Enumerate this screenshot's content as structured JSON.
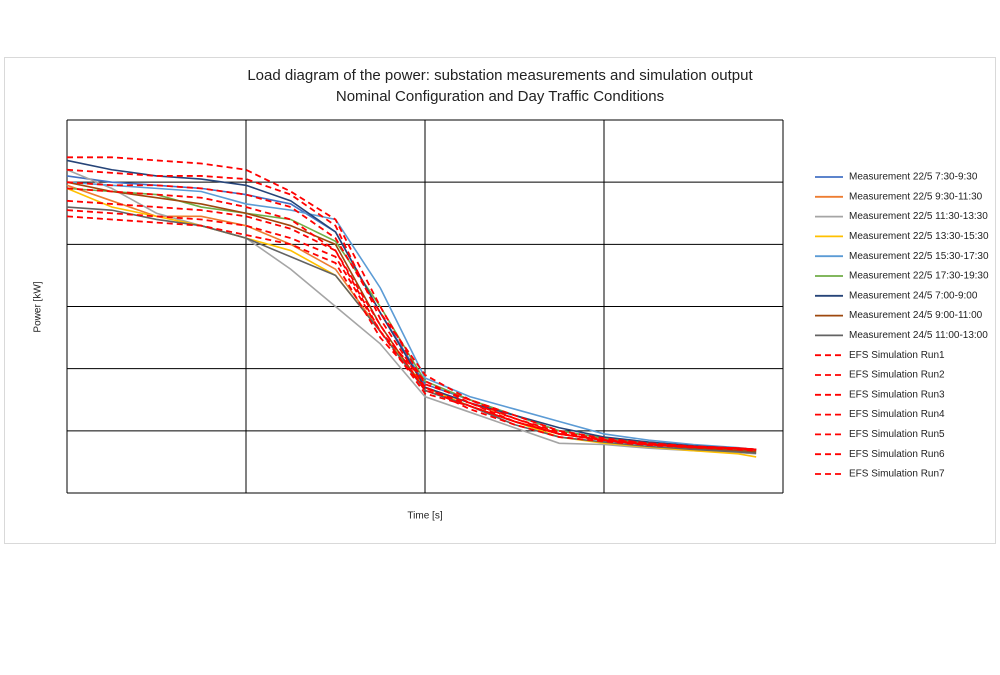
{
  "chart_data": {
    "type": "line",
    "title": "Load diagram of the power: substation measurements and simulation output",
    "subtitle": "Nominal Configuration and Day Traffic Conditions",
    "x_label": "Time [s]",
    "y_label": "Power [kW]",
    "x": [
      0,
      0.25,
      0.5,
      0.75,
      1,
      1.25,
      1.5,
      1.75,
      2,
      2.25,
      2.5,
      2.75,
      3,
      3.25,
      3.5,
      3.75,
      3.85
    ],
    "xlim": [
      0,
      4
    ],
    "ylim": [
      0,
      6
    ],
    "xticks": [
      0,
      1,
      2,
      3,
      4
    ],
    "yticks": [
      0,
      1,
      2,
      3,
      4,
      5,
      6
    ],
    "grid": true,
    "legend": "right",
    "series": [
      {
        "name": "Measurement 22/5 7:30-9:30",
        "color": "#4472c4",
        "values": [
          5.1,
          5.0,
          4.95,
          4.9,
          4.8,
          4.65,
          4.2,
          2.9,
          1.75,
          1.5,
          1.25,
          1.0,
          0.88,
          0.8,
          0.74,
          0.7,
          0.68
        ]
      },
      {
        "name": "Measurement 22/5 9:30-11:30",
        "color": "#ed7d31",
        "values": [
          4.95,
          4.7,
          4.45,
          4.45,
          4.3,
          4.0,
          3.6,
          2.6,
          1.7,
          1.45,
          1.2,
          0.95,
          0.85,
          0.78,
          0.72,
          0.68,
          0.66
        ]
      },
      {
        "name": "Measurement 22/5 11:30-13:30",
        "color": "#a5a5a5",
        "values": [
          5.2,
          4.9,
          4.5,
          4.3,
          4.1,
          3.6,
          3.0,
          2.4,
          1.55,
          1.3,
          1.05,
          0.8,
          0.78,
          0.72,
          0.68,
          0.65,
          0.63
        ]
      },
      {
        "name": "Measurement 22/5 13:30-15:30",
        "color": "#ffc000",
        "values": [
          4.9,
          4.6,
          4.45,
          4.3,
          4.1,
          3.9,
          3.5,
          2.6,
          1.7,
          1.4,
          1.15,
          0.9,
          0.8,
          0.74,
          0.68,
          0.63,
          0.58
        ]
      },
      {
        "name": "Measurement 22/5 15:30-17:30",
        "color": "#5b9bd5",
        "values": [
          5.0,
          4.95,
          4.9,
          4.85,
          4.65,
          4.55,
          4.4,
          3.3,
          1.85,
          1.55,
          1.35,
          1.15,
          0.95,
          0.85,
          0.78,
          0.73,
          0.7
        ]
      },
      {
        "name": "Measurement 22/5 17:30-19:30",
        "color": "#70ad47",
        "values": [
          4.9,
          4.85,
          4.8,
          4.6,
          4.5,
          4.4,
          4.05,
          3.0,
          1.8,
          1.5,
          1.25,
          1.0,
          0.88,
          0.8,
          0.74,
          0.7,
          0.68
        ]
      },
      {
        "name": "Measurement 24/5 7:00-9:00",
        "color": "#264478",
        "values": [
          5.35,
          5.2,
          5.1,
          5.05,
          4.95,
          4.7,
          4.2,
          2.9,
          1.7,
          1.45,
          1.25,
          1.05,
          0.9,
          0.82,
          0.76,
          0.72,
          0.7
        ]
      },
      {
        "name": "Measurement 24/5 9:00-11:00",
        "color": "#9e480e",
        "values": [
          5.0,
          4.85,
          4.75,
          4.65,
          4.5,
          4.3,
          4.0,
          2.7,
          1.65,
          1.4,
          1.15,
          0.95,
          0.85,
          0.78,
          0.72,
          0.68,
          0.66
        ]
      },
      {
        "name": "Measurement 24/5 11:00-13:00",
        "color": "#636363",
        "values": [
          4.6,
          4.55,
          4.4,
          4.3,
          4.1,
          3.8,
          3.5,
          2.6,
          1.65,
          1.4,
          1.1,
          0.9,
          0.82,
          0.75,
          0.7,
          0.66,
          0.64
        ]
      },
      {
        "name": "EFS Simulation Run1",
        "color": "#ff0000",
        "dashed": true,
        "values": [
          5.4,
          5.4,
          5.35,
          5.3,
          5.2,
          4.85,
          4.4,
          3.0,
          1.75,
          1.5,
          1.2,
          0.95,
          0.85,
          0.78,
          0.74,
          0.72,
          0.7
        ]
      },
      {
        "name": "EFS Simulation Run2",
        "color": "#ff0000",
        "dashed": true,
        "values": [
          5.2,
          5.15,
          5.1,
          5.1,
          5.05,
          4.8,
          4.3,
          2.8,
          1.7,
          1.4,
          1.15,
          0.95,
          0.85,
          0.78,
          0.74,
          0.72,
          0.7
        ]
      },
      {
        "name": "EFS Simulation Run3",
        "color": "#ff0000",
        "dashed": true,
        "values": [
          4.45,
          4.4,
          4.35,
          4.3,
          4.15,
          4.0,
          3.7,
          2.5,
          1.7,
          1.35,
          1.1,
          0.9,
          0.83,
          0.77,
          0.73,
          0.7,
          0.68
        ]
      },
      {
        "name": "EFS Simulation Run4",
        "color": "#ff0000",
        "dashed": true,
        "values": [
          4.55,
          4.5,
          4.45,
          4.4,
          4.3,
          4.1,
          3.8,
          2.6,
          1.8,
          1.45,
          1.15,
          0.95,
          0.85,
          0.78,
          0.74,
          0.72,
          0.7
        ]
      },
      {
        "name": "EFS Simulation Run5",
        "color": "#ff0000",
        "dashed": true,
        "values": [
          4.9,
          4.85,
          4.8,
          4.75,
          4.6,
          4.4,
          3.9,
          2.7,
          1.65,
          1.45,
          1.2,
          0.98,
          0.86,
          0.8,
          0.75,
          0.72,
          0.7
        ]
      },
      {
        "name": "EFS Simulation Run6",
        "color": "#ff0000",
        "dashed": true,
        "values": [
          5.0,
          4.95,
          4.95,
          4.9,
          4.8,
          4.6,
          4.1,
          2.9,
          1.9,
          1.5,
          1.25,
          1.0,
          0.88,
          0.8,
          0.75,
          0.72,
          0.7
        ]
      },
      {
        "name": "EFS Simulation Run7",
        "color": "#ff0000",
        "dashed": true,
        "values": [
          4.7,
          4.65,
          4.6,
          4.55,
          4.45,
          4.25,
          3.9,
          2.6,
          1.6,
          1.4,
          1.15,
          0.95,
          0.85,
          0.78,
          0.74,
          0.71,
          0.69
        ]
      }
    ]
  }
}
